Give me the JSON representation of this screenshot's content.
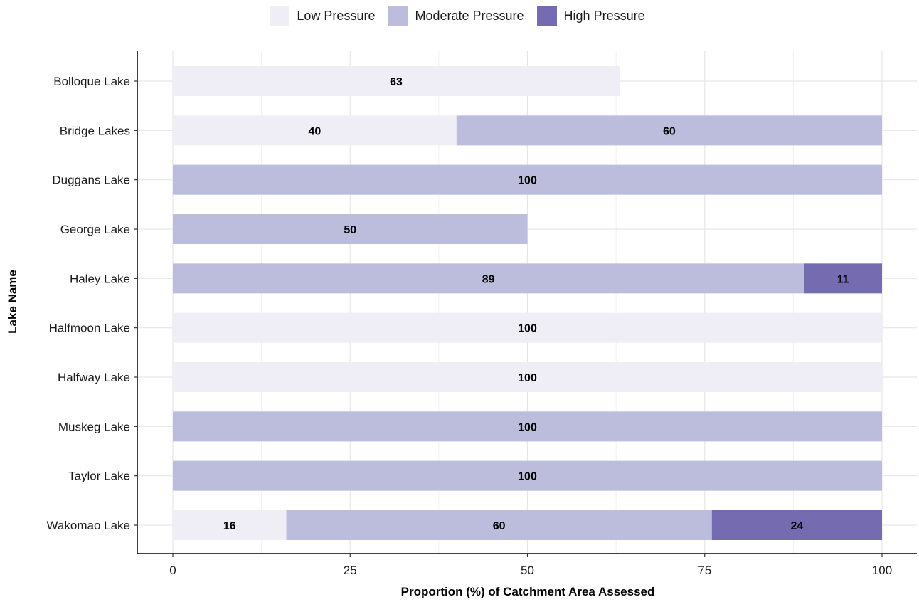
{
  "chart_data": {
    "type": "bar",
    "orientation": "horizontal",
    "stacked": true,
    "title": "",
    "xlabel": "Proportion (%) of Catchment Area Assessed",
    "ylabel": "Lake Name",
    "xlim": [
      0,
      100
    ],
    "xticks": [
      0,
      25,
      50,
      75,
      100
    ],
    "grid": true,
    "legend_position": "top",
    "categories": [
      "Bolloque Lake",
      "Bridge Lakes",
      "Duggans Lake",
      "George Lake",
      "Haley Lake",
      "Halfmoon Lake",
      "Halfway Lake",
      "Muskeg Lake",
      "Taylor Lake",
      "Wakomao Lake"
    ],
    "series": [
      {
        "name": "Low Pressure",
        "color": "#efedf5",
        "values": [
          63,
          40,
          0,
          0,
          0,
          100,
          100,
          0,
          0,
          16
        ]
      },
      {
        "name": "Moderate Pressure",
        "color": "#bcbddc",
        "values": [
          0,
          60,
          100,
          50,
          89,
          0,
          0,
          100,
          100,
          60
        ]
      },
      {
        "name": "High Pressure",
        "color": "#756bb1",
        "values": [
          0,
          0,
          0,
          0,
          11,
          0,
          0,
          0,
          0,
          24
        ]
      }
    ]
  }
}
